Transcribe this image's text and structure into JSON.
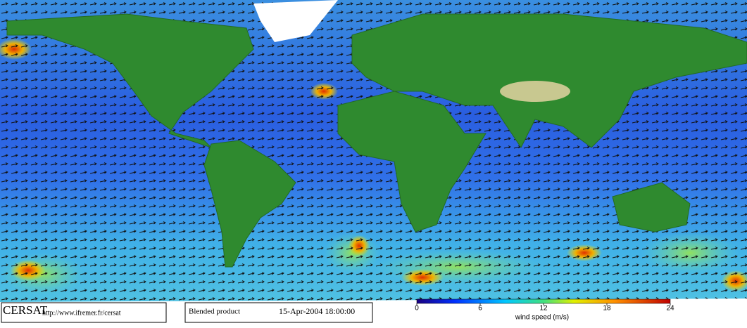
{
  "footer": {
    "logo": "CERSAT",
    "url": "http://www.ifremer.fr/cersat",
    "product": "Blended product",
    "date": "15-Apr-2004 18:00:00"
  },
  "colorbar": {
    "label": "wind speed (m/s)",
    "range": [
      0,
      24
    ],
    "ticks": [
      0,
      6,
      12,
      18,
      24
    ]
  }
}
